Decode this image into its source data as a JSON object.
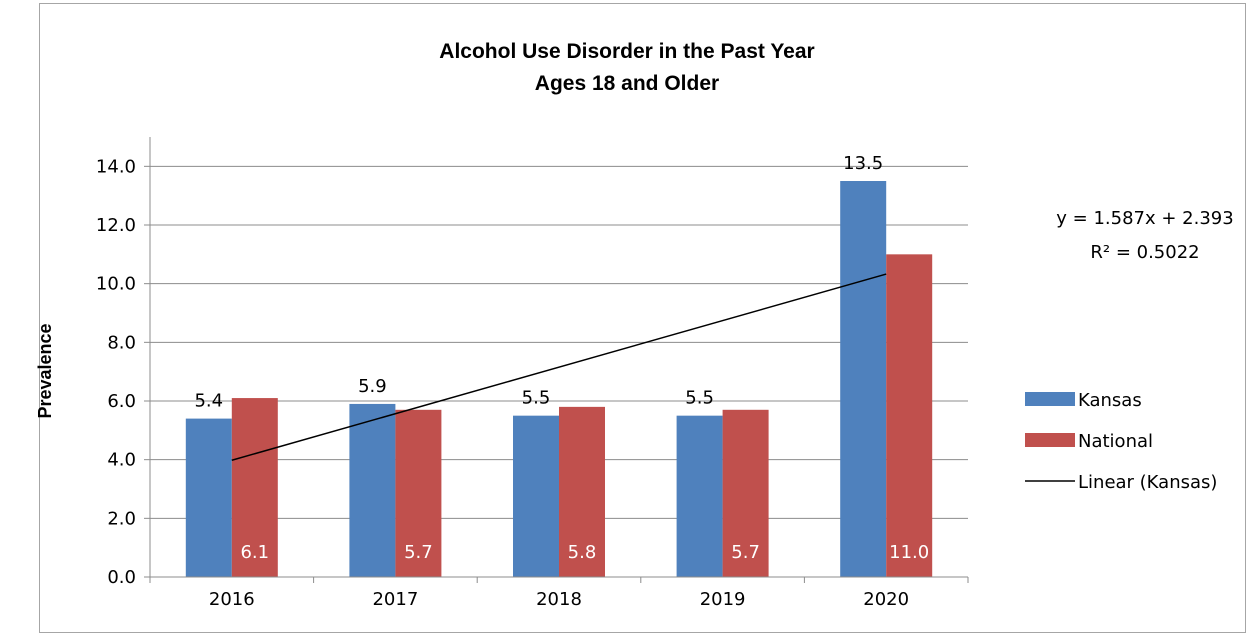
{
  "chart_data": {
    "type": "bar",
    "title": "Alcohol Use Disorder in the Past Year",
    "subtitle": "Ages 18 and Older",
    "xlabel": "",
    "ylabel": "Prevalence",
    "categories": [
      "2016",
      "2017",
      "2018",
      "2019",
      "2020"
    ],
    "ylim": [
      0,
      14
    ],
    "yticks": [
      "0.0",
      "2.0",
      "4.0",
      "6.0",
      "8.0",
      "10.0",
      "12.0",
      "14.0"
    ],
    "grid": true,
    "legend_position": "right",
    "series": [
      {
        "name": "Kansas",
        "values": [
          5.4,
          5.9,
          5.5,
          5.5,
          13.5
        ],
        "color": "#4f81bd",
        "labels": [
          "5.4",
          "5.9",
          "5.5",
          "5.5",
          "13.5"
        ]
      },
      {
        "name": "National",
        "values": [
          6.1,
          5.7,
          5.8,
          5.7,
          11.0
        ],
        "color": "#c0504d",
        "labels": [
          "6.1",
          "5.7",
          "5.8",
          "5.7",
          "11.0"
        ]
      }
    ],
    "trendline": {
      "name": "Linear (Kansas)",
      "slope": 1.587,
      "intercept": 2.393,
      "color": "#000000",
      "equation": "y = 1.587x + 2.393",
      "r_squared": "R² = 0.5022"
    }
  }
}
